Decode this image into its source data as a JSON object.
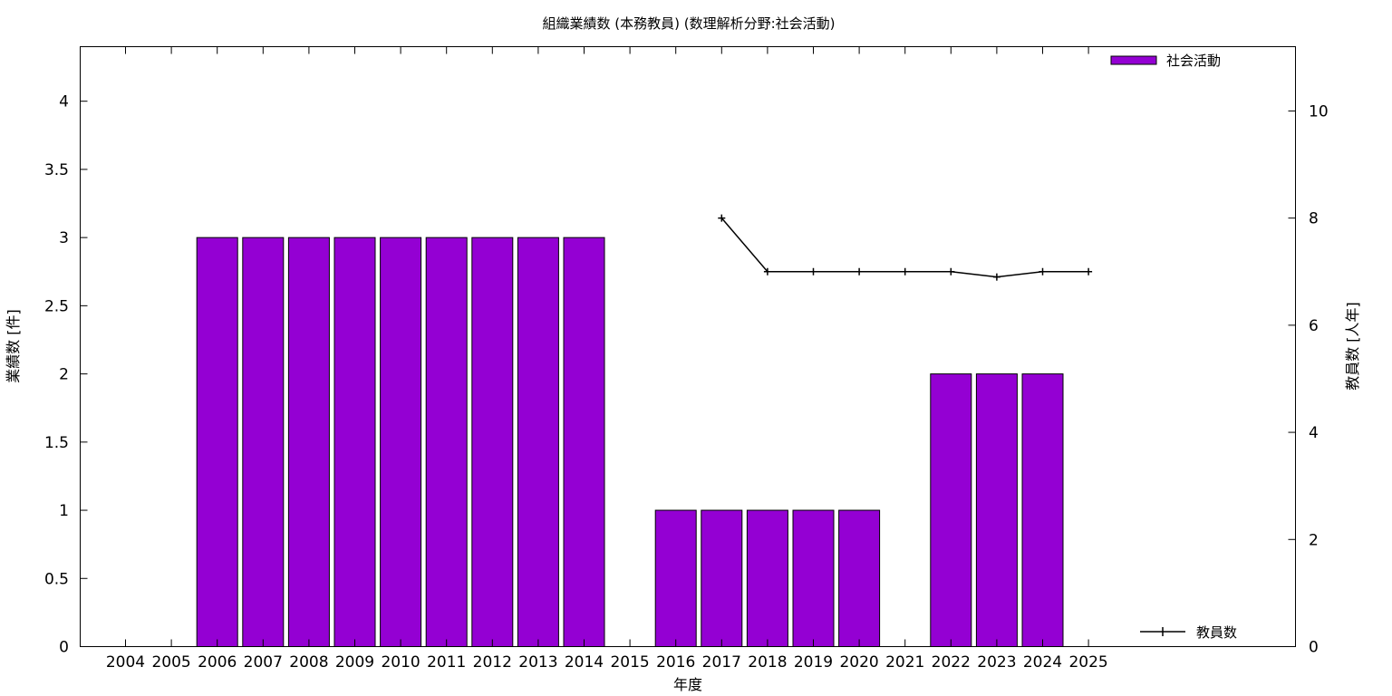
{
  "chart_data": {
    "type": "bar",
    "title": "組織業績数 (本務教員) (数理解析分野:社会活動)",
    "xlabel": "年度",
    "ylabel": "業績数 [件]",
    "y2label": "教員数 [人年]",
    "categories": [
      "2004",
      "2005",
      "2006",
      "2007",
      "2008",
      "2009",
      "2010",
      "2011",
      "2012",
      "2013",
      "2014",
      "2015",
      "2016",
      "2017",
      "2018",
      "2019",
      "2020",
      "2021",
      "2022",
      "2023",
      "2024",
      "2025"
    ],
    "series": [
      {
        "name": "社会活動",
        "type": "bar",
        "axis": "y",
        "color": "#9400d3",
        "values": [
          0,
          0,
          3,
          3,
          3,
          3,
          3,
          3,
          3,
          3,
          3,
          0,
          1,
          1,
          1,
          1,
          1,
          0,
          2,
          2,
          2,
          0
        ]
      },
      {
        "name": "教員数",
        "type": "line",
        "axis": "y2",
        "color": "#000000",
        "values": [
          null,
          null,
          null,
          null,
          null,
          null,
          null,
          null,
          null,
          null,
          null,
          null,
          null,
          8,
          7,
          7,
          7,
          7,
          7,
          6.9,
          7,
          7
        ]
      }
    ],
    "ylim": [
      0,
      4.4
    ],
    "yticks": [
      "0",
      "0.5",
      "1",
      "1.5",
      "2",
      "2.5",
      "3",
      "3.5",
      "4"
    ],
    "y2lim": [
      0,
      11.2
    ],
    "y2ticks": [
      "0",
      "2",
      "4",
      "6",
      "8",
      "10"
    ],
    "grid": false,
    "legend": [
      "top-right",
      "bottom-right"
    ]
  }
}
